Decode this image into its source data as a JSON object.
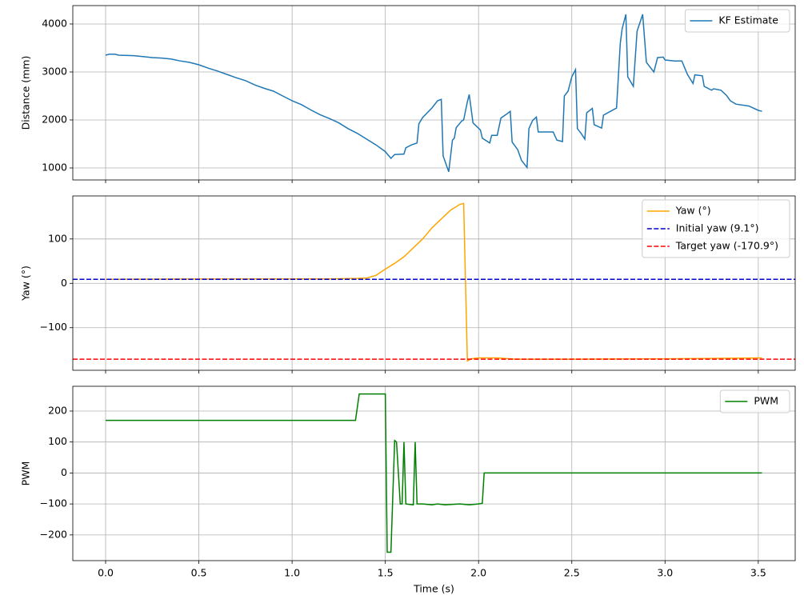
{
  "chart_data": [
    {
      "type": "line",
      "ylabel": "Distance (mm)",
      "x": [
        0.0,
        0.02,
        0.05,
        0.07,
        0.15,
        0.2,
        0.25,
        0.3,
        0.35,
        0.4,
        0.45,
        0.5,
        0.55,
        0.6,
        0.65,
        0.7,
        0.75,
        0.8,
        0.85,
        0.9,
        0.95,
        1.0,
        1.05,
        1.1,
        1.15,
        1.2,
        1.25,
        1.3,
        1.35,
        1.4,
        1.45,
        1.5,
        1.53,
        1.55,
        1.6,
        1.61,
        1.64,
        1.67,
        1.68,
        1.7,
        1.75,
        1.78,
        1.8,
        1.81,
        1.84,
        1.86,
        1.87,
        1.88,
        1.91,
        1.92,
        1.94,
        1.95,
        1.97,
        2.01,
        2.02,
        2.06,
        2.07,
        2.1,
        2.12,
        2.15,
        2.17,
        2.18,
        2.21,
        2.23,
        2.26,
        2.27,
        2.29,
        2.31,
        2.32,
        2.4,
        2.42,
        2.45,
        2.46,
        2.48,
        2.5,
        2.52,
        2.53,
        2.55,
        2.57,
        2.58,
        2.61,
        2.62,
        2.66,
        2.67,
        2.74,
        2.76,
        2.77,
        2.79,
        2.8,
        2.83,
        2.85,
        2.88,
        2.9,
        2.94,
        2.96,
        2.99,
        3.0,
        3.05,
        3.09,
        3.12,
        3.15,
        3.16,
        3.2,
        3.21,
        3.25,
        3.26,
        3.3,
        3.33,
        3.35,
        3.38,
        3.45,
        3.5,
        3.52
      ],
      "series": [
        {
          "name": "KF Estimate",
          "color": "#1f77b4",
          "values": [
            3350,
            3370,
            3370,
            3350,
            3340,
            3320,
            3300,
            3290,
            3270,
            3230,
            3200,
            3150,
            3080,
            3020,
            2950,
            2880,
            2820,
            2730,
            2660,
            2600,
            2500,
            2400,
            2320,
            2210,
            2110,
            2030,
            1940,
            1820,
            1720,
            1600,
            1480,
            1340,
            1200,
            1280,
            1290,
            1420,
            1480,
            1520,
            1920,
            2050,
            2250,
            2400,
            2430,
            1250,
            920,
            1580,
            1620,
            1840,
            1980,
            2000,
            2380,
            2530,
            1940,
            1790,
            1620,
            1520,
            1680,
            1680,
            2040,
            2120,
            2180,
            1540,
            1380,
            1160,
            1010,
            1820,
            1990,
            2060,
            1750,
            1750,
            1580,
            1550,
            2500,
            2600,
            2900,
            3050,
            1820,
            1720,
            1600,
            2150,
            2240,
            1900,
            1830,
            2100,
            2250,
            3600,
            3900,
            4200,
            2900,
            2700,
            3850,
            4200,
            3200,
            3000,
            3300,
            3310,
            3250,
            3230,
            3230,
            2950,
            2760,
            2940,
            2920,
            2700,
            2620,
            2650,
            2620,
            2510,
            2400,
            2330,
            2290,
            2200,
            2180
          ]
        }
      ],
      "hlines": [],
      "xlim": [
        -0.176,
        3.698
      ],
      "ylim": [
        750,
        4383
      ],
      "xticks": [
        0,
        0.5,
        1,
        1.5,
        2,
        2.5,
        3,
        3.5
      ],
      "yticks": [
        1000,
        2000,
        3000,
        4000
      ],
      "grid": true,
      "legend": "upper right"
    },
    {
      "type": "line",
      "ylabel": "Yaw (°)",
      "x": [
        0,
        0.3,
        0.6,
        0.9,
        1.2,
        1.35,
        1.4,
        1.45,
        1.5,
        1.55,
        1.6,
        1.65,
        1.7,
        1.75,
        1.8,
        1.85,
        1.9,
        1.92,
        1.94,
        1.96,
        2.0,
        2.1,
        2.2,
        2.5,
        3.0,
        3.3,
        3.52
      ],
      "series": [
        {
          "name": "Yaw (°)",
          "color": "#ffa500",
          "values": [
            9.1,
            9.5,
            9.8,
            10,
            10,
            11,
            12,
            18,
            32,
            45,
            60,
            80,
            100,
            125,
            145,
            165,
            178,
            180,
            -175,
            -170,
            -168,
            -168,
            -171,
            -171,
            -170,
            -169,
            -168
          ]
        }
      ],
      "hlines": [
        {
          "name": "Initial yaw (9.1°)",
          "color": "#0000cc",
          "value": 9.1,
          "style": "dashed"
        },
        {
          "name": "Target yaw (-170.9°)",
          "color": "#ff0000",
          "value": -170.9,
          "style": "dashed"
        }
      ],
      "xlim": [
        -0.176,
        3.698
      ],
      "ylim": [
        -196,
        197
      ],
      "xticks": [
        0,
        0.5,
        1,
        1.5,
        2,
        2.5,
        3,
        3.5
      ],
      "yticks": [
        {
          "value": -100,
          "label": "−100"
        },
        0,
        100
      ],
      "grid": true,
      "legend": "upper right"
    },
    {
      "type": "line",
      "ylabel": "PWM",
      "xlabel": "Time (s)",
      "x": [
        0,
        1.34,
        1.36,
        1.5,
        1.51,
        1.53,
        1.55,
        1.56,
        1.58,
        1.59,
        1.6,
        1.61,
        1.65,
        1.66,
        1.67,
        1.7,
        1.75,
        1.78,
        1.82,
        1.9,
        1.95,
        2.0,
        2.02,
        2.03,
        3.52
      ],
      "series": [
        {
          "name": "PWM",
          "color": "#008000",
          "values": [
            170,
            170,
            255,
            255,
            -256,
            -256,
            105,
            100,
            -100,
            -100,
            100,
            -100,
            -103,
            100,
            -100,
            -100,
            -103,
            -100,
            -103,
            -100,
            -103,
            -100,
            -98,
            0,
            0
          ]
        }
      ],
      "hlines": [],
      "xlim": [
        -0.176,
        3.698
      ],
      "ylim": [
        -283,
        280
      ],
      "xticks": [
        {
          "value": 0,
          "label": "0.0"
        },
        0.5,
        {
          "value": 1,
          "label": "1.0"
        },
        1.5,
        {
          "value": 2,
          "label": "2.0"
        },
        2.5,
        {
          "value": 3,
          "label": "3.0"
        },
        3.5
      ],
      "yticks": [
        {
          "value": -200,
          "label": "−200"
        },
        {
          "value": -100,
          "label": "−100"
        },
        0,
        100,
        200
      ],
      "grid": true,
      "legend": "upper right"
    }
  ]
}
